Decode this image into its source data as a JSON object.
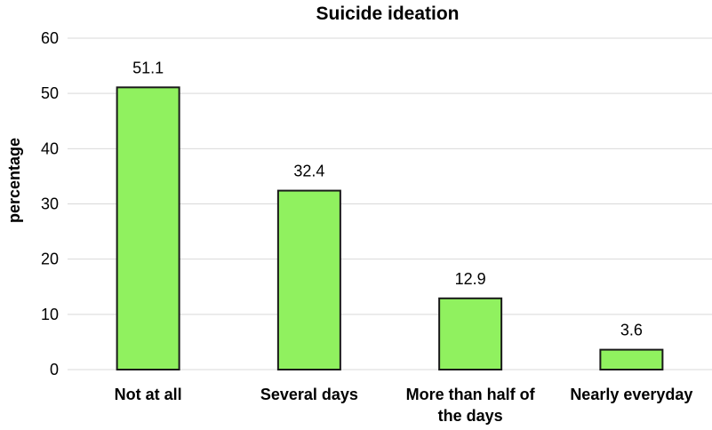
{
  "chart_data": {
    "type": "bar",
    "title": "Suicide ideation",
    "xlabel": "",
    "ylabel": "percentage",
    "categories": [
      "Not at all",
      "Several days",
      "More than half of the days",
      "Nearly everyday"
    ],
    "category_lines": [
      [
        "Not at all"
      ],
      [
        "Several days"
      ],
      [
        "More than half of",
        "the days"
      ],
      [
        "Nearly everyday"
      ]
    ],
    "values": [
      51.1,
      32.4,
      12.9,
      3.6
    ],
    "data_labels": [
      "51.1",
      "32.4",
      "12.9",
      "3.6"
    ],
    "ylim": [
      0,
      60
    ],
    "yticks": [
      "0",
      "10",
      "20",
      "30",
      "40",
      "50",
      "60"
    ],
    "grid": true,
    "legend": "none",
    "colors": {
      "bar_fill": "#90f15f",
      "bar_border": "#1a1a1a",
      "grid": "#d9d9d9"
    }
  }
}
